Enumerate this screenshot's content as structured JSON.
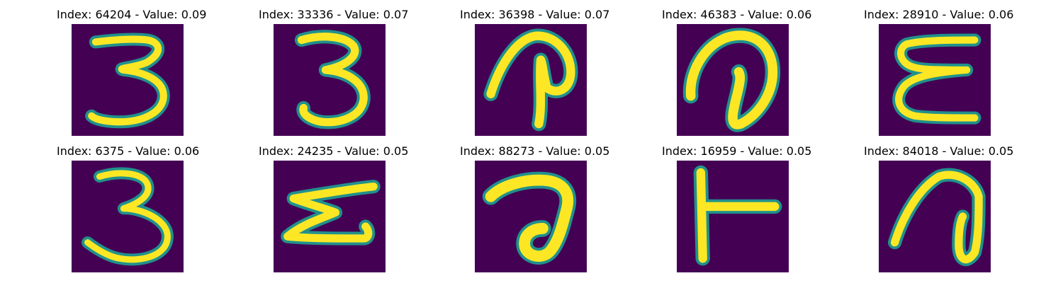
{
  "colors": {
    "background": "#440154",
    "mid": "#21918c",
    "highlight": "#fde725"
  },
  "panels": [
    {
      "title": "Index: 64204 - Value: 0.09",
      "image_name": "digit-3"
    },
    {
      "title": "Index: 33336 - Value: 0.07",
      "image_name": "digit-3"
    },
    {
      "title": "Index: 36398 - Value: 0.07",
      "image_name": "curled-p-glyph"
    },
    {
      "title": "Index: 46383 - Value: 0.06",
      "image_name": "loop-glyph"
    },
    {
      "title": "Index: 28910 - Value: 0.06",
      "image_name": "digit-3-variant"
    },
    {
      "title": "Index: 6375 - Value: 0.06",
      "image_name": "digit-3"
    },
    {
      "title": "Index: 24235 - Value: 0.05",
      "image_name": "rotated-3-glyph"
    },
    {
      "title": "Index: 88273 - Value: 0.05",
      "image_name": "hook-glyph"
    },
    {
      "title": "Index: 16959 - Value: 0.05",
      "image_name": "t-glyph"
    },
    {
      "title": "Index: 84018 - Value: 0.05",
      "image_name": "loop-glyph"
    }
  ]
}
